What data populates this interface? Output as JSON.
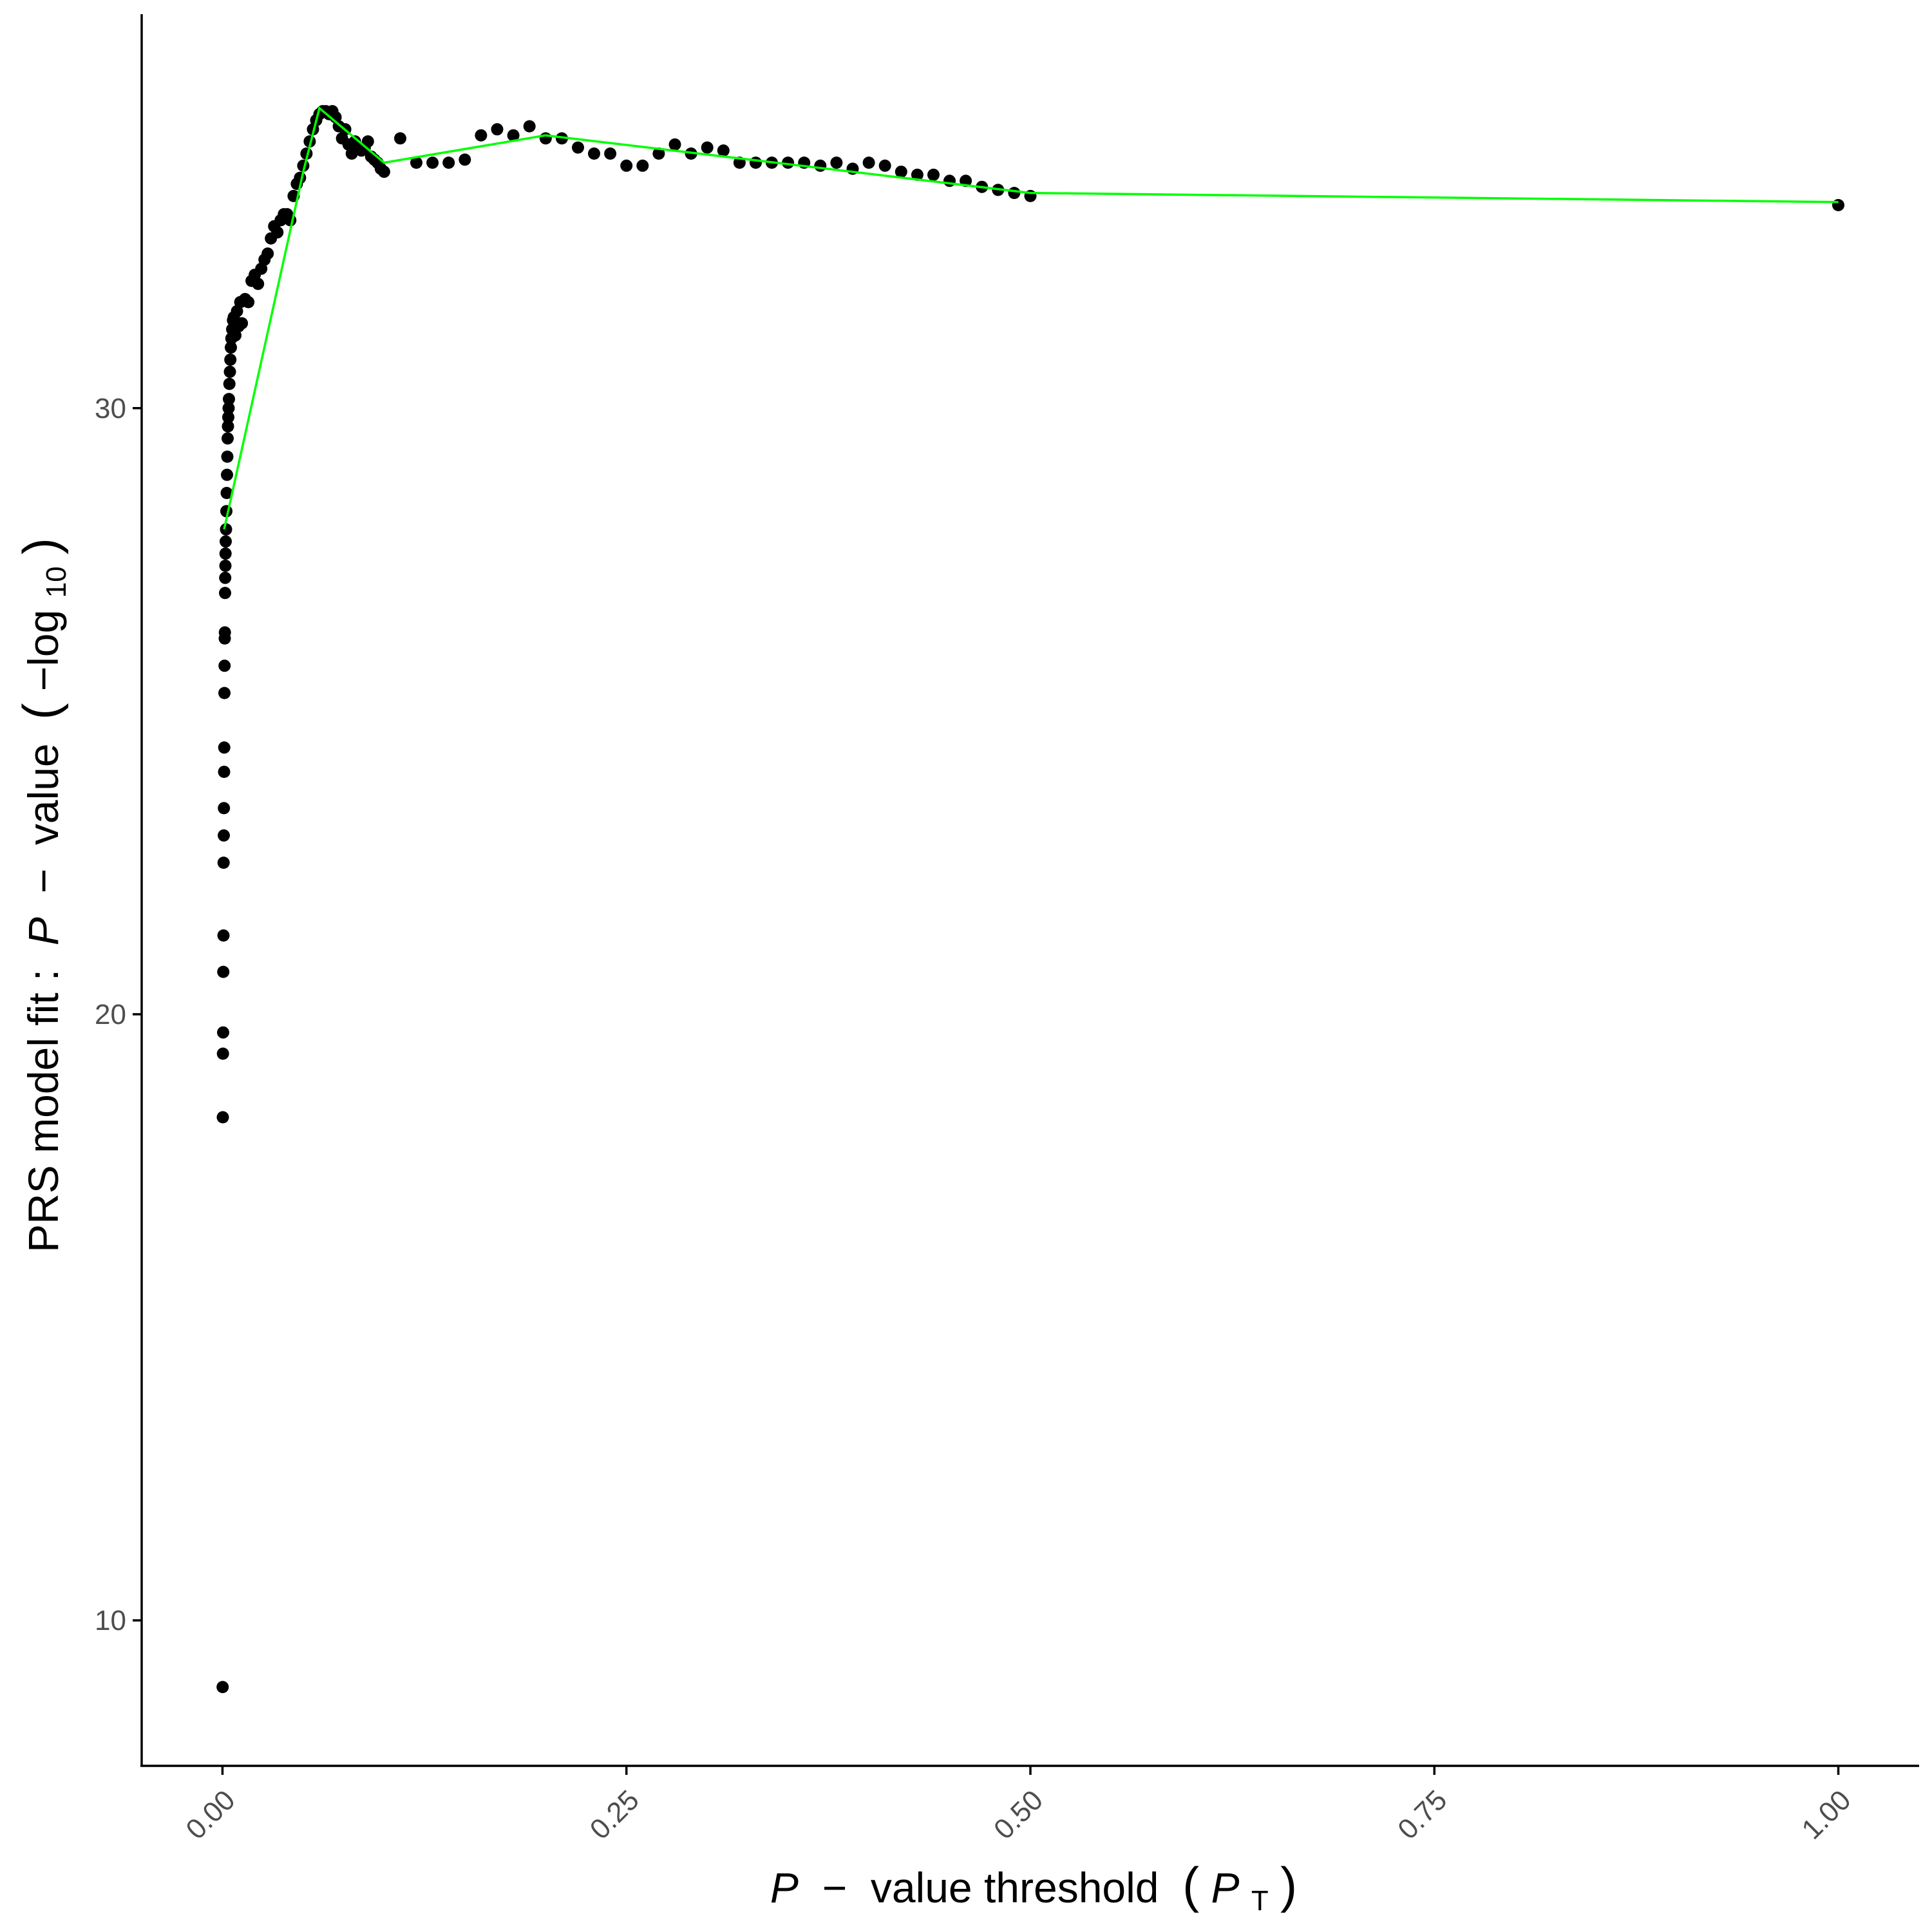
{
  "colors": {
    "points": "#000000",
    "line": "#00ff00",
    "axis": "#000000",
    "tick_text": "#4d4d4d"
  },
  "chart_data": {
    "type": "scatter",
    "xlabel": {
      "italic_p": "P",
      "dash": " − ",
      "main": "value threshold ",
      "open": "(",
      "sub_p": "P",
      "sub_t": "T",
      "close": ")"
    },
    "ylabel": {
      "main": "PRS model fit : ",
      "italic_p": "P",
      "dash": " − ",
      "value": "value ",
      "open": "(",
      "log": "−log",
      "base": "10",
      "close": ")"
    },
    "xlim": [
      -0.05,
      1.05
    ],
    "ylim": [
      7.6,
      36.5
    ],
    "x_ticks": [
      {
        "value": 0,
        "label": "0.00"
      },
      {
        "value": 0.25,
        "label": "0.25"
      },
      {
        "value": 0.5,
        "label": "0.50"
      },
      {
        "value": 0.75,
        "label": "0.75"
      },
      {
        "value": 1,
        "label": "1.00"
      }
    ],
    "y_ticks": [
      {
        "value": 10,
        "label": "10"
      },
      {
        "value": 20,
        "label": "20"
      },
      {
        "value": 30,
        "label": "30"
      }
    ],
    "grid": false,
    "legend": "none",
    "points": [
      [
        0.0001,
        8.9
      ],
      [
        0.0002,
        18.3
      ],
      [
        0.0003,
        19.35
      ],
      [
        0.0004,
        19.7
      ],
      [
        0.0005,
        20.7
      ],
      [
        0.0006,
        21.3
      ],
      [
        0.0007,
        22.5
      ],
      [
        0.0008,
        22.95
      ],
      [
        0.0009,
        23.4
      ],
      [
        0.001,
        24.0
      ],
      [
        0.0011,
        24.4
      ],
      [
        0.0012,
        25.3
      ],
      [
        0.0013,
        25.75
      ],
      [
        0.0014,
        26.2
      ],
      [
        0.0015,
        26.3
      ],
      [
        0.0016,
        26.95
      ],
      [
        0.0017,
        27.2
      ],
      [
        0.0018,
        27.4
      ],
      [
        0.0019,
        27.6
      ],
      [
        0.002,
        27.8
      ],
      [
        0.0022,
        28.0
      ],
      [
        0.0024,
        28.3
      ],
      [
        0.0026,
        28.6
      ],
      [
        0.0028,
        28.9
      ],
      [
        0.003,
        29.2
      ],
      [
        0.0032,
        29.5
      ],
      [
        0.0034,
        29.7
      ],
      [
        0.0036,
        29.85
      ],
      [
        0.0038,
        30.0
      ],
      [
        0.004,
        30.15
      ],
      [
        0.0043,
        30.4
      ],
      [
        0.0046,
        30.6
      ],
      [
        0.0049,
        30.8
      ],
      [
        0.0052,
        31.0
      ],
      [
        0.0055,
        31.15
      ],
      [
        0.006,
        31.3
      ],
      [
        0.0065,
        31.45
      ],
      [
        0.007,
        31.5
      ],
      [
        0.008,
        31.2
      ],
      [
        0.009,
        31.6
      ],
      [
        0.01,
        31.35
      ],
      [
        0.011,
        31.75
      ],
      [
        0.012,
        31.4
      ],
      [
        0.014,
        31.8
      ],
      [
        0.016,
        31.75
      ],
      [
        0.018,
        32.1
      ],
      [
        0.02,
        32.2
      ],
      [
        0.022,
        32.05
      ],
      [
        0.024,
        32.3
      ],
      [
        0.026,
        32.45
      ],
      [
        0.028,
        32.55
      ],
      [
        0.03,
        32.8
      ],
      [
        0.032,
        33.0
      ],
      [
        0.034,
        32.9
      ],
      [
        0.036,
        33.1
      ],
      [
        0.038,
        33.2
      ],
      [
        0.04,
        33.2
      ],
      [
        0.042,
        33.1
      ],
      [
        0.044,
        33.5
      ],
      [
        0.046,
        33.7
      ],
      [
        0.048,
        33.8
      ],
      [
        0.05,
        34.0
      ],
      [
        0.052,
        34.2
      ],
      [
        0.054,
        34.4
      ],
      [
        0.056,
        34.6
      ],
      [
        0.058,
        34.75
      ],
      [
        0.06,
        34.85
      ],
      [
        0.062,
        34.9
      ],
      [
        0.064,
        34.9
      ],
      [
        0.066,
        34.85
      ],
      [
        0.068,
        34.9
      ],
      [
        0.07,
        34.8
      ],
      [
        0.072,
        34.65
      ],
      [
        0.074,
        34.45
      ],
      [
        0.076,
        34.6
      ],
      [
        0.078,
        34.35
      ],
      [
        0.08,
        34.2
      ],
      [
        0.082,
        34.4
      ],
      [
        0.084,
        34.3
      ],
      [
        0.086,
        34.25
      ],
      [
        0.088,
        34.3
      ],
      [
        0.09,
        34.4
      ],
      [
        0.092,
        34.15
      ],
      [
        0.094,
        34.1
      ],
      [
        0.096,
        34.05
      ],
      [
        0.098,
        33.95
      ],
      [
        0.1,
        33.9
      ],
      [
        0.11,
        34.45
      ],
      [
        0.12,
        34.05
      ],
      [
        0.13,
        34.05
      ],
      [
        0.14,
        34.05
      ],
      [
        0.15,
        34.1
      ],
      [
        0.16,
        34.5
      ],
      [
        0.17,
        34.6
      ],
      [
        0.18,
        34.5
      ],
      [
        0.19,
        34.65
      ],
      [
        0.2,
        34.45
      ],
      [
        0.21,
        34.45
      ],
      [
        0.22,
        34.3
      ],
      [
        0.23,
        34.2
      ],
      [
        0.24,
        34.2
      ],
      [
        0.25,
        34.0
      ],
      [
        0.26,
        34.0
      ],
      [
        0.27,
        34.2
      ],
      [
        0.28,
        34.35
      ],
      [
        0.29,
        34.2
      ],
      [
        0.3,
        34.3
      ],
      [
        0.31,
        34.25
      ],
      [
        0.32,
        34.05
      ],
      [
        0.33,
        34.05
      ],
      [
        0.34,
        34.05
      ],
      [
        0.35,
        34.05
      ],
      [
        0.36,
        34.05
      ],
      [
        0.37,
        34.0
      ],
      [
        0.38,
        34.05
      ],
      [
        0.39,
        33.95
      ],
      [
        0.4,
        34.05
      ],
      [
        0.41,
        34.0
      ],
      [
        0.42,
        33.9
      ],
      [
        0.43,
        33.85
      ],
      [
        0.44,
        33.85
      ],
      [
        0.45,
        33.75
      ],
      [
        0.46,
        33.75
      ],
      [
        0.47,
        33.65
      ],
      [
        0.48,
        33.6
      ],
      [
        0.49,
        33.55
      ],
      [
        0.5,
        33.5
      ],
      [
        1.0,
        33.35
      ]
    ],
    "line": [
      [
        0.001,
        28.0
      ],
      [
        0.05,
        33.9
      ],
      [
        0.06,
        34.95
      ],
      [
        0.1,
        34.05
      ],
      [
        0.2,
        34.5
      ],
      [
        0.5,
        33.55
      ],
      [
        1.0,
        33.4
      ]
    ]
  }
}
